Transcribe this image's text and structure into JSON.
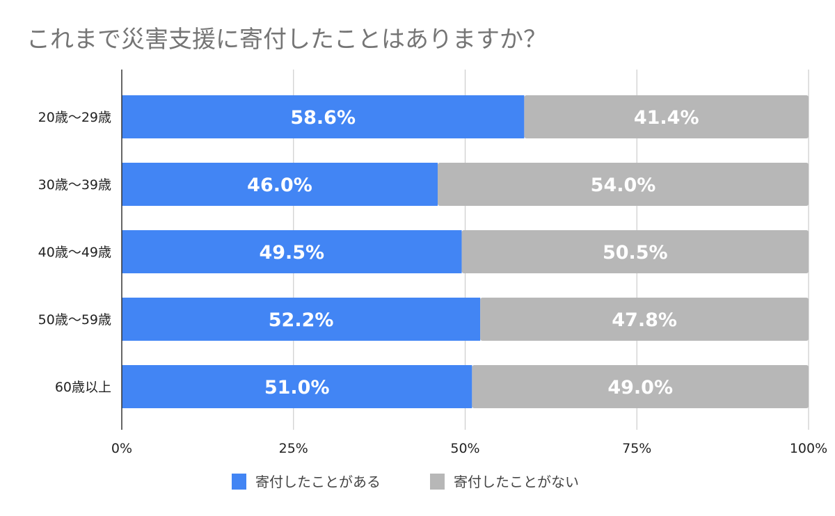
{
  "chart_data": {
    "type": "bar",
    "orientation": "horizontal",
    "stacked": true,
    "title": "これまで災害支援に寄付したことはありますか？",
    "categories": [
      "20歳〜29歳",
      "30歳〜39歳",
      "40歳〜49歳",
      "50歳〜59歳",
      "60歳以上"
    ],
    "series": [
      {
        "name": "寄付したことがある",
        "color": "#4285f4",
        "values": [
          58.6,
          46.0,
          49.5,
          52.2,
          51.0
        ],
        "labels": [
          "58.6%",
          "46.0%",
          "49.5%",
          "52.2%",
          "51.0%"
        ]
      },
      {
        "name": "寄付したことがない",
        "color": "#b7b7b7",
        "values": [
          41.4,
          54.0,
          50.5,
          47.8,
          49.0
        ],
        "labels": [
          "41.4%",
          "54.0%",
          "50.5%",
          "47.8%",
          "49.0%"
        ]
      }
    ],
    "xlim": [
      0,
      100
    ],
    "xticks": [
      0,
      25,
      50,
      75,
      100
    ],
    "xtick_labels": [
      "0%",
      "25%",
      "50%",
      "75%",
      "100%"
    ],
    "grid": "vertical",
    "legend_position": "bottom"
  }
}
